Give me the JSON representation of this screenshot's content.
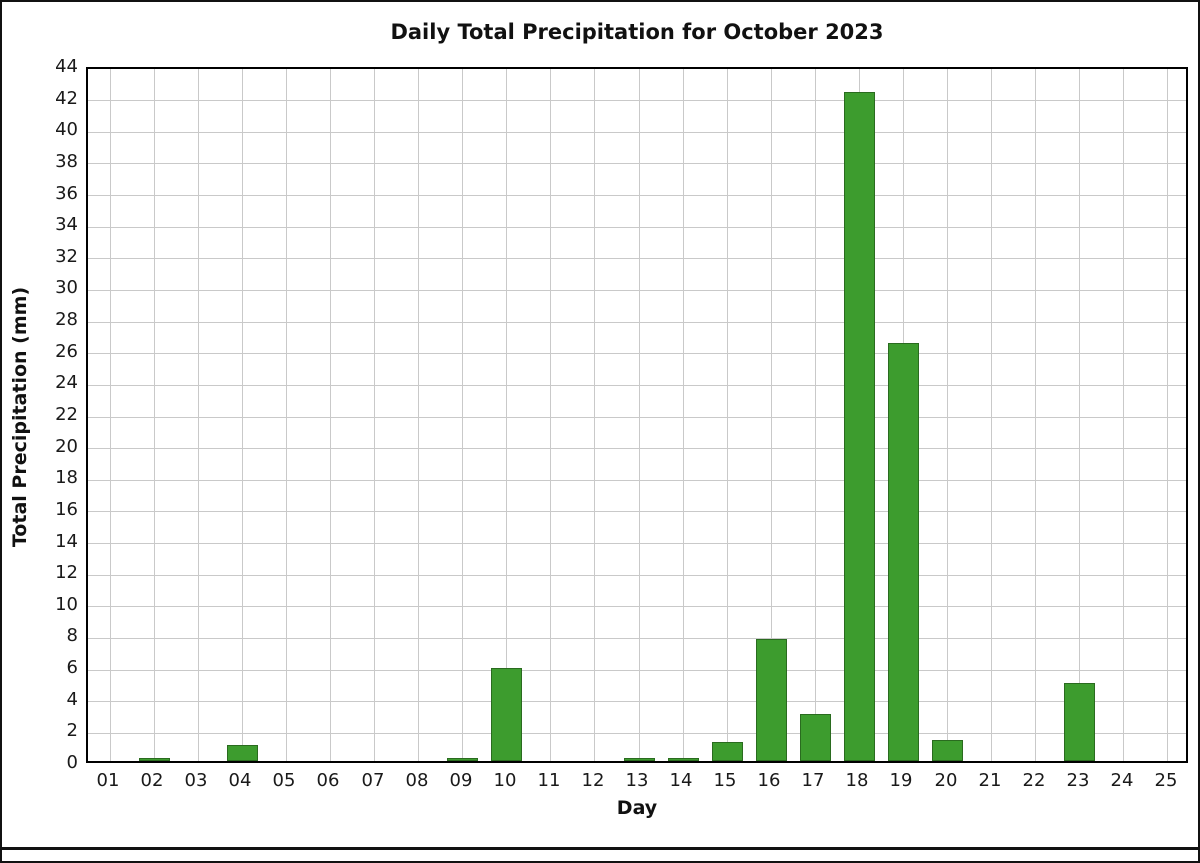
{
  "chart_data": {
    "type": "bar",
    "title": "Daily Total Precipitation for October 2023",
    "xlabel": "Day",
    "ylabel": "Total Precipitation (mm)",
    "categories": [
      "01",
      "02",
      "03",
      "04",
      "05",
      "06",
      "07",
      "08",
      "09",
      "10",
      "11",
      "12",
      "13",
      "14",
      "15",
      "16",
      "17",
      "18",
      "19",
      "20",
      "21",
      "22",
      "23",
      "24",
      "25"
    ],
    "values": [
      0,
      0.2,
      0,
      1.0,
      0,
      0,
      0,
      0,
      0.2,
      5.9,
      0,
      0,
      0.2,
      0.2,
      1.2,
      7.7,
      3.0,
      42.3,
      26.4,
      1.3,
      0,
      0,
      4.9,
      0,
      0
    ],
    "ylim": [
      0,
      44
    ],
    "ytick_step": 2,
    "grid": true,
    "legend": "none",
    "bar_fill_color": "#3d9c2e",
    "bar_edge_color": "#2a6b1f",
    "gridline_color": "#c9c9c9",
    "axis_color": "#000000"
  }
}
